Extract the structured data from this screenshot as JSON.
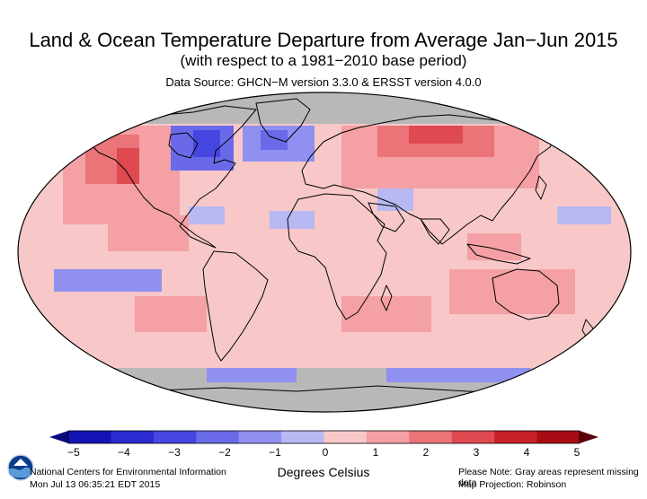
{
  "header": {
    "title": "Land & Ocean Temperature Departure from Average Jan−Jun 2015",
    "subtitle": "(with respect to a 1981−2010 base period)",
    "source": "Data Source: GHCN−M version 3.3.0 & ERSST version 4.0.0"
  },
  "colorbar": {
    "title": "Degrees Celsius",
    "ticks": [
      "−5",
      "−4",
      "−3",
      "−2",
      "−1",
      "0",
      "1",
      "2",
      "3",
      "4",
      "5"
    ],
    "tick_values": [
      -5,
      -4,
      -3,
      -2,
      -1,
      0,
      1,
      2,
      3,
      4,
      5
    ],
    "colors": [
      "#1414b4",
      "#2b2bd0",
      "#4646e0",
      "#6a6ae8",
      "#9090f0",
      "#b8b8f2",
      "#f8c8c8",
      "#f4a0a4",
      "#ea7478",
      "#de4a50",
      "#c8202a",
      "#aa0a14"
    ],
    "below_color": "#0a0a80",
    "above_color": "#5a0008"
  },
  "map_colors": {
    "missing": "#b8b8b8",
    "land_outline": "#000000",
    "background_anomaly": "#f8c8c8"
  },
  "footer": {
    "left_line1": "National Centers for Environmental Information",
    "left_line2": "Mon Jul 13 06:35:21 EDT 2015",
    "right_line1": "Please Note: Gray areas represent missing data",
    "right_line2": "Map Projection: Robinson"
  },
  "logo": {
    "icon": "noaa-logo-icon"
  }
}
